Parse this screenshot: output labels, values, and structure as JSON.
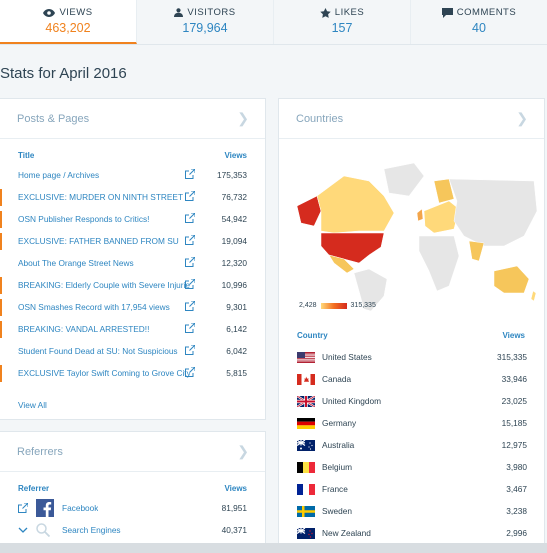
{
  "stats": {
    "views": {
      "label": "VIEWS",
      "value": "463,202"
    },
    "visitors": {
      "label": "VISITORS",
      "value": "179,964"
    },
    "likes": {
      "label": "LIKES",
      "value": "157"
    },
    "comments": {
      "label": "COMMENTS",
      "value": "40"
    }
  },
  "period_title": "Stats for April 2016",
  "posts": {
    "header": "Posts & Pages",
    "col_title": "Title",
    "col_views": "Views",
    "view_all": "View All",
    "rows": [
      {
        "title": "Home page / Archives",
        "views": "175,353",
        "bar": false
      },
      {
        "title": "EXCLUSIVE: MURDER ON NINTH STREET",
        "views": "76,732",
        "bar": true
      },
      {
        "title": "OSN Publisher Responds to Critics!",
        "views": "54,942",
        "bar": true
      },
      {
        "title": "EXCLUSIVE: FATHER BANNED FROM SU",
        "views": "19,094",
        "bar": true
      },
      {
        "title": "About The Orange Street News",
        "views": "12,320",
        "bar": false
      },
      {
        "title": "BREAKING: Elderly Couple with Severe Injuries",
        "views": "10,996",
        "bar": true
      },
      {
        "title": "OSN Smashes Record with 17,954 views",
        "views": "9,301",
        "bar": true
      },
      {
        "title": "BREAKING: VANDAL ARRESTED!!",
        "views": "6,142",
        "bar": true
      },
      {
        "title": "Student Found Dead at SU: Not Suspicious",
        "views": "6,042",
        "bar": false
      },
      {
        "title": "EXCLUSIVE Taylor Swift Coming to Grove City",
        "views": "5,815",
        "bar": true
      }
    ]
  },
  "referrers": {
    "header": "Referrers",
    "col_title": "Referrer",
    "col_views": "Views",
    "rows": [
      {
        "name": "Facebook",
        "views": "81,951"
      },
      {
        "name": "Search Engines",
        "views": "40,371"
      }
    ]
  },
  "countries": {
    "header": "Countries",
    "legend_min": "2,428",
    "legend_max": "315,335",
    "col_country": "Country",
    "col_views": "Views",
    "rows": [
      {
        "name": "United States",
        "views": "315,335",
        "flag": "us"
      },
      {
        "name": "Canada",
        "views": "33,946",
        "flag": "ca"
      },
      {
        "name": "United Kingdom",
        "views": "23,025",
        "flag": "gb"
      },
      {
        "name": "Germany",
        "views": "15,185",
        "flag": "de"
      },
      {
        "name": "Australia",
        "views": "12,975",
        "flag": "au"
      },
      {
        "name": "Belgium",
        "views": "3,980",
        "flag": "be"
      },
      {
        "name": "France",
        "views": "3,467",
        "flag": "fr"
      },
      {
        "name": "Sweden",
        "views": "3,238",
        "flag": "se"
      },
      {
        "name": "New Zealand",
        "views": "2,996",
        "flag": "nz"
      }
    ]
  },
  "colors": {
    "accent": "#f0821e",
    "link": "#2e86c1",
    "text": "#2e4453"
  }
}
